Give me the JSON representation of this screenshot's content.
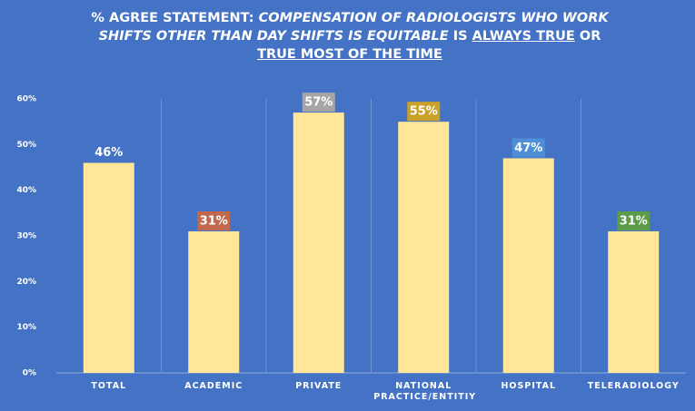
{
  "chart_data": {
    "type": "bar",
    "title_parts": [
      "% AGREE STATEMENT: ",
      "COMPENSATION OF RADIOLOGISTS WHO WORK SHIFTS OTHER THAN DAY SHIFTS IS EQUITABLE",
      " IS ",
      "ALWAYS TRUE",
      " OR ",
      "TRUE MOST OF THE TIME"
    ],
    "categories": [
      "TOTAL",
      "ACADEMIC",
      "PRIVATE",
      "NATIONAL PRACTICE/ENTITIY",
      "HOSPITAL",
      "TELERADIOLOGY"
    ],
    "values": [
      46,
      31,
      57,
      55,
      47,
      31
    ],
    "value_labels": [
      "46%",
      "31%",
      "57%",
      "55%",
      "47%",
      "31%"
    ],
    "label_colors": [
      null,
      "#c0694f",
      "#a5a5a5",
      "#c9a227",
      "#4e8fd6",
      "#5c9b48"
    ],
    "color": "#ffe699",
    "ylim": [
      0,
      60
    ],
    "yticks": [
      {
        "value": 0,
        "label": "0%"
      },
      {
        "value": 10,
        "label": "10%"
      },
      {
        "value": 20,
        "label": "20%"
      },
      {
        "value": 30,
        "label": "30%"
      },
      {
        "value": 40,
        "label": "40%"
      },
      {
        "value": 50,
        "label": "50%"
      },
      {
        "value": 60,
        "label": "60%"
      }
    ]
  }
}
